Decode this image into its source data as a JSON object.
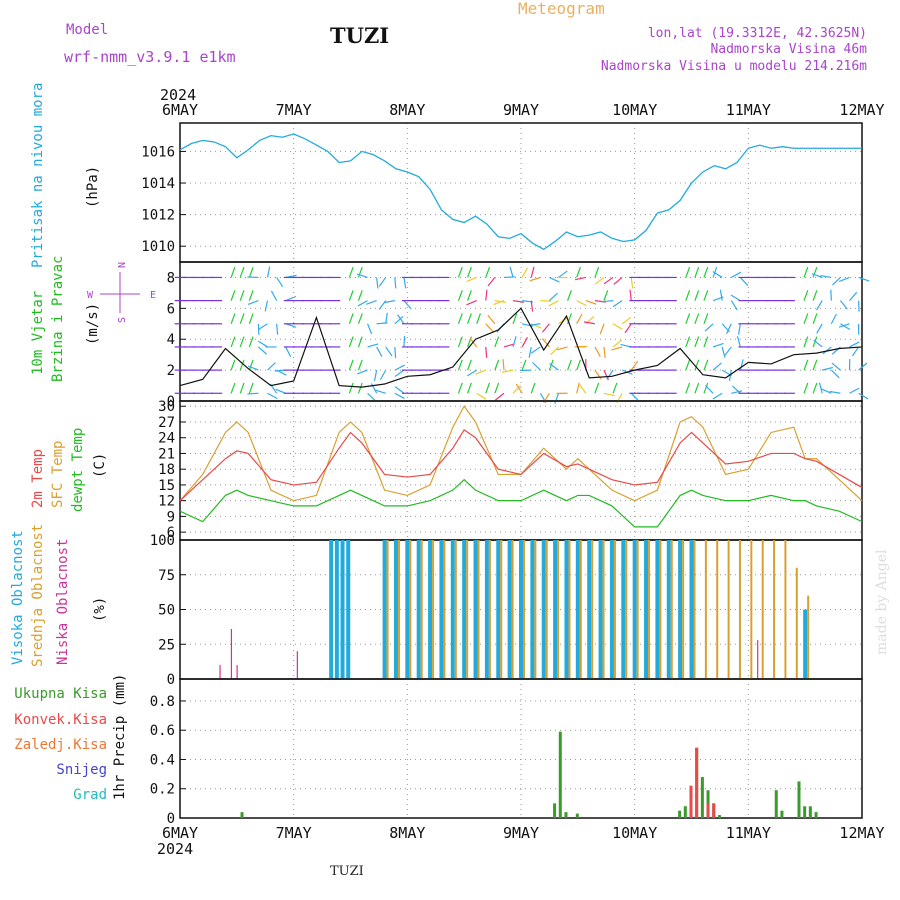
{
  "header": {
    "model_label": "Model",
    "model_name": "wrf-nmm_v3.9.1 e1km",
    "station": "TUZI",
    "chart_title": "Meteogram",
    "lonlat": "lon,lat (19.3312E, 42.3625N)",
    "altitude": "Nadmorska Visina 46m",
    "model_altitude": "Nadmorska Visina u modelu 214.216m",
    "footer_station": "TUZI",
    "watermark": "made by Angel"
  },
  "colors": {
    "pressure": "#22aadd",
    "temp2m": "#e84a4a",
    "sfc": "#d9a030",
    "dew": "#22bb22",
    "high_cloud": "#22aadd",
    "mid_cloud": "#d9a030",
    "low_cloud": "#cc3399",
    "total_precip": "#3a9a2a",
    "conv_precip": "#e84a4a",
    "frozen_precip": "#ee7733",
    "snow": "#4444cc",
    "hail": "#22bbbb",
    "model_label": "#aa44cc",
    "title_label": "#e8b060"
  },
  "time_axis": {
    "year": "2024",
    "ticks": [
      "6MAY",
      "7MAY",
      "8MAY",
      "9MAY",
      "10MAY",
      "11MAY",
      "12MAY"
    ]
  },
  "panels": {
    "pressure": {
      "ylabel": "Pritisak na nivou mora",
      "unit": "(hPa)"
    },
    "wind": {
      "ylabel1": "10m Vjetar",
      "ylabel2": "Brzina i Pravac",
      "unit": "(m/s)",
      "compass_n": "N",
      "compass_s": "S",
      "compass_w": "W",
      "compass_e": "E"
    },
    "temp": {
      "ylabel1": "2m Temp",
      "ylabel2": "SFC Temp",
      "ylabel3": "dewpt Temp",
      "unit": "(C)"
    },
    "cloud": {
      "ylabel1": "Visoka Oblacnost",
      "ylabel2": "Srednja Oblacnost",
      "ylabel3": "Niska Oblacnost",
      "unit": "(%)"
    },
    "precip": {
      "ylabel": "1hr Precip (mm)",
      "legend": [
        "Ukupna Kisa",
        "Konvek.Kisa",
        "Zaledj.Kisa",
        "Snijeg",
        "Grad"
      ]
    }
  },
  "chart_data": [
    {
      "type": "line",
      "title": "Pritisak na nivou mora",
      "ylabel": "(hPa)",
      "ylim": [
        1009,
        1017.8
      ],
      "yticks": [
        "1010",
        "1012",
        "1014",
        "1016"
      ],
      "x": [
        0,
        0.1,
        0.2,
        0.3,
        0.4,
        0.5,
        0.6,
        0.7,
        0.8,
        0.9,
        1.0,
        1.1,
        1.2,
        1.3,
        1.4,
        1.5,
        1.6,
        1.7,
        1.8,
        1.9,
        2.0,
        2.1,
        2.2,
        2.3,
        2.4,
        2.5,
        2.6,
        2.7,
        2.8,
        2.9,
        3.0,
        3.1,
        3.2,
        3.3,
        3.4,
        3.5,
        3.6,
        3.7,
        3.8,
        3.9,
        4.0,
        4.1,
        4.2,
        4.3,
        4.4,
        4.5,
        4.6,
        4.7,
        4.8,
        4.9,
        5.0,
        5.1,
        5.2,
        5.3,
        5.4,
        5.5,
        5.6,
        5.7,
        5.8,
        5.9,
        6.0
      ],
      "series": [
        {
          "values": [
            1016.1,
            1016.5,
            1016.7,
            1016.6,
            1016.3,
            1015.6,
            1016.1,
            1016.7,
            1017.0,
            1016.9,
            1017.1,
            1016.8,
            1016.4,
            1016.0,
            1015.3,
            1015.4,
            1016.0,
            1015.8,
            1015.4,
            1014.9,
            1014.7,
            1014.4,
            1013.6,
            1012.3,
            1011.7,
            1011.5,
            1011.9,
            1011.4,
            1010.6,
            1010.5,
            1010.8,
            1010.2,
            1009.8,
            1010.3,
            1010.9,
            1010.6,
            1010.7,
            1010.9,
            1010.5,
            1010.3,
            1010.4,
            1011.0,
            1012.1,
            1012.3,
            1012.9,
            1014.0,
            1014.7,
            1015.1,
            1014.9,
            1015.3,
            1016.2,
            1016.4,
            1016.2,
            1016.3,
            1016.2,
            1016.2,
            1016.2,
            1016.2,
            1016.2,
            1016.2,
            1016.2
          ]
        }
      ]
    },
    {
      "type": "line",
      "title": "10m Vjetar Brzina i Pravac",
      "ylabel": "(m/s)",
      "ylim": [
        0,
        9
      ],
      "yticks": [
        "0",
        "2",
        "4",
        "6",
        "8"
      ],
      "x": [
        0,
        0.2,
        0.4,
        0.6,
        0.8,
        1.0,
        1.2,
        1.4,
        1.6,
        1.8,
        2.0,
        2.2,
        2.4,
        2.6,
        2.8,
        3.0,
        3.2,
        3.4,
        3.6,
        3.8,
        4.0,
        4.2,
        4.4,
        4.6,
        4.8,
        5.0,
        5.2,
        5.4,
        5.6,
        5.8,
        6.0
      ],
      "series": [
        {
          "name": "",
          "values": [
            1.0,
            1.4,
            3.4,
            2.1,
            1.0,
            1.3,
            5.4,
            1.0,
            0.9,
            1.1,
            1.6,
            1.7,
            2.2,
            4.0,
            4.6,
            6.0,
            3.3,
            5.5,
            1.5,
            1.6,
            2.0,
            2.3,
            3.4,
            1.7,
            1.5,
            2.5,
            2.4,
            3.0,
            3.1,
            3.4,
            3.5
          ]
        }
      ]
    },
    {
      "type": "line",
      "title": "",
      "ylabel": "(C)",
      "ylim": [
        4.5,
        31
      ],
      "yticks": [
        "6",
        "9",
        "12",
        "15",
        "18",
        "21",
        "24",
        "27",
        "30"
      ],
      "x": [
        0,
        0.2,
        0.4,
        0.5,
        0.6,
        0.8,
        1.0,
        1.2,
        1.4,
        1.5,
        1.6,
        1.8,
        2.0,
        2.2,
        2.4,
        2.5,
        2.6,
        2.8,
        3.0,
        3.2,
        3.4,
        3.5,
        3.6,
        3.8,
        4.0,
        4.2,
        4.4,
        4.5,
        4.6,
        4.8,
        5.0,
        5.2,
        5.4,
        5.5,
        5.6,
        5.8,
        6.0
      ],
      "series": [
        {
          "name": "2m Temp",
          "values": [
            12,
            16,
            20,
            21.5,
            21,
            16,
            15,
            15.5,
            22,
            25,
            23,
            17,
            16.5,
            17,
            22,
            25.5,
            24,
            18,
            17,
            21,
            18.5,
            19,
            18,
            16,
            15,
            15.5,
            23,
            25,
            23,
            19,
            19.5,
            21,
            21,
            20,
            19.5,
            17,
            14.5
          ]
        },
        {
          "name": "SFC Temp",
          "values": [
            12,
            17,
            25,
            27,
            25,
            14,
            12,
            13,
            25,
            27,
            25,
            14,
            13,
            15,
            26,
            30,
            27,
            17,
            17,
            22,
            18,
            20,
            18,
            14,
            12,
            14,
            27,
            28,
            26,
            17,
            18,
            25,
            26,
            20,
            20,
            16,
            12
          ]
        },
        {
          "name": "dewpt Temp",
          "values": [
            10,
            8,
            13,
            14,
            13,
            12,
            11,
            11,
            13,
            14,
            13,
            11,
            11,
            12,
            14,
            16,
            14,
            12,
            12,
            14,
            12,
            13,
            13,
            11,
            7,
            7,
            13,
            14,
            13,
            12,
            12,
            13,
            12,
            12,
            11,
            10,
            8
          ]
        }
      ]
    },
    {
      "type": "bar",
      "title": "",
      "ylabel": "(%)",
      "ylim": [
        0,
        100
      ],
      "yticks": [
        "0",
        "25",
        "50",
        "75",
        "100"
      ],
      "x": [
        0.37,
        0.47,
        0.52,
        1.05,
        1.33,
        1.38,
        1.43,
        1.48,
        1.8,
        1.9,
        2.0,
        2.1,
        2.2,
        2.3,
        2.4,
        2.5,
        2.6,
        2.7,
        2.8,
        2.9,
        3.0,
        3.1,
        3.2,
        3.3,
        3.4,
        3.5,
        3.6,
        3.7,
        3.8,
        3.9,
        4.0,
        4.1,
        4.2,
        4.3,
        4.4,
        4.5,
        4.6,
        4.7,
        4.8,
        4.9,
        5.0,
        5.1,
        5.2,
        5.3,
        5.4,
        5.5
      ],
      "series": [
        {
          "name": "Visoka Oblacnost",
          "values": [
            0,
            0,
            0,
            0,
            100,
            100,
            100,
            100,
            100,
            100,
            100,
            100,
            100,
            100,
            100,
            100,
            100,
            100,
            100,
            100,
            100,
            100,
            100,
            100,
            100,
            100,
            100,
            100,
            100,
            100,
            100,
            100,
            100,
            100,
            100,
            100,
            0,
            0,
            0,
            0,
            0,
            0,
            0,
            0,
            0,
            50
          ]
        },
        {
          "name": "Srednja Oblacnost",
          "values": [
            0,
            0,
            0,
            0,
            0,
            0,
            0,
            0,
            100,
            100,
            100,
            100,
            100,
            100,
            100,
            100,
            100,
            100,
            100,
            100,
            100,
            100,
            100,
            100,
            100,
            100,
            100,
            100,
            100,
            100,
            100,
            100,
            100,
            100,
            100,
            100,
            100,
            100,
            100,
            100,
            100,
            100,
            100,
            100,
            80,
            60
          ]
        },
        {
          "name": "Niska Oblacnost",
          "values": [
            10,
            36,
            10,
            20,
            0,
            0,
            0,
            0,
            0,
            0,
            0,
            0,
            0,
            0,
            0,
            0,
            0,
            0,
            0,
            0,
            0,
            0,
            0,
            0,
            0,
            0,
            0,
            0,
            0,
            0,
            0,
            0,
            0,
            0,
            0,
            0,
            0,
            0,
            0,
            0,
            0,
            28,
            0,
            0,
            0,
            0
          ]
        }
      ]
    },
    {
      "type": "bar",
      "title": "",
      "ylabel": "1hr Precip (mm)",
      "ylim": [
        0,
        0.95
      ],
      "yticks": [
        "0",
        "0.2",
        "0.4",
        "0.6",
        "0.8"
      ],
      "x": [
        0.55,
        3.3,
        3.35,
        3.4,
        3.5,
        4.4,
        4.45,
        4.5,
        4.55,
        4.6,
        4.65,
        4.7,
        4.75,
        5.25,
        5.3,
        5.45,
        5.5,
        5.55,
        5.6
      ],
      "series": [
        {
          "name": "Ukupna Kisa",
          "values": [
            0.04,
            0.1,
            0.59,
            0.04,
            0.03,
            0.05,
            0.08,
            0.22,
            0.48,
            0.28,
            0.19,
            0.1,
            0.02,
            0.19,
            0.05,
            0.25,
            0.08,
            0.08,
            0.04
          ]
        },
        {
          "name": "Konvek.Kisa",
          "values": [
            0,
            0,
            0,
            0,
            0,
            0,
            0,
            0.22,
            0.48,
            0,
            0.1,
            0.1,
            0,
            0,
            0,
            0,
            0,
            0,
            0
          ]
        }
      ]
    }
  ]
}
